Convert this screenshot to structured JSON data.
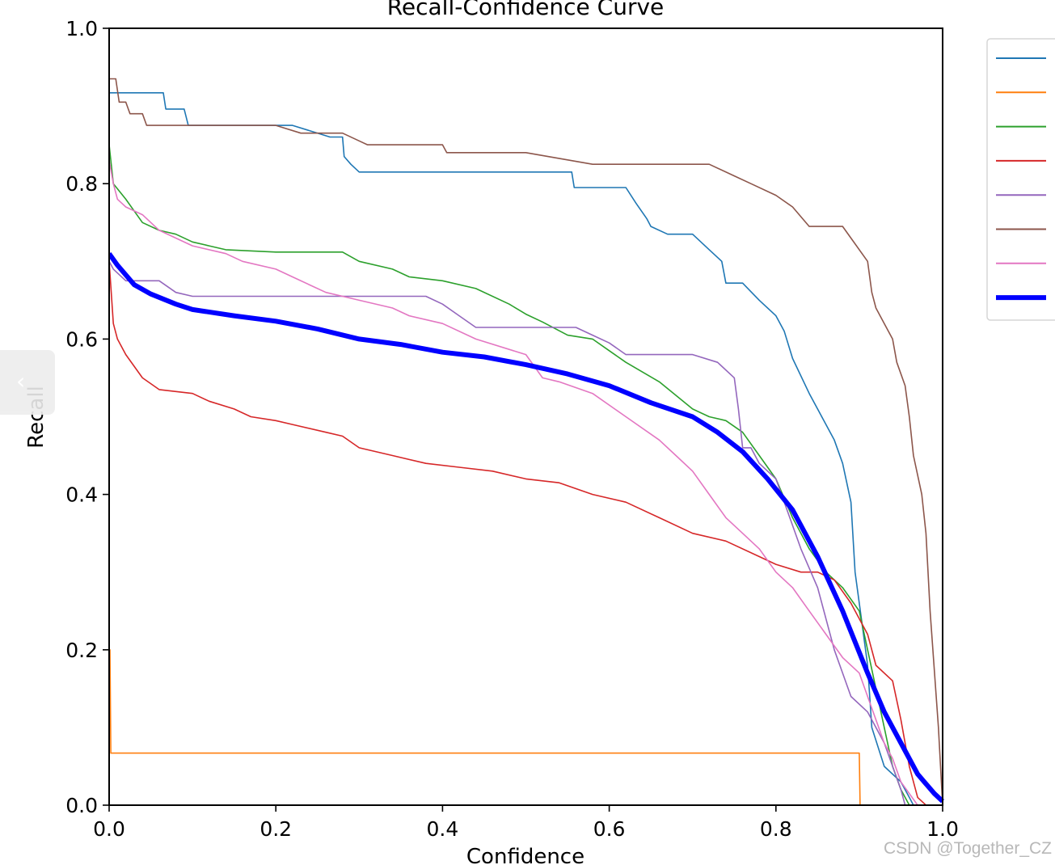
{
  "chart_data": {
    "type": "line",
    "title": "Recall-Confidence Curve",
    "xlabel": "Confidence",
    "ylabel": "Recall",
    "xlim": [
      0,
      1
    ],
    "ylim": [
      0,
      1
    ],
    "xticks": [
      "0.0",
      "0.2",
      "0.4",
      "0.6",
      "0.8",
      "1.0"
    ],
    "yticks": [
      "0.0",
      "0.2",
      "0.4",
      "0.6",
      "0.8",
      "1.0"
    ],
    "grid": false,
    "legend_position": "outside-right",
    "series": [
      {
        "color": "#1f77b4",
        "width": 1.6,
        "x": [
          0,
          0.065,
          0.068,
          0.09,
          0.095,
          0.22,
          0.265,
          0.28,
          0.282,
          0.29,
          0.3,
          0.555,
          0.558,
          0.62,
          0.632,
          0.645,
          0.65,
          0.67,
          0.7,
          0.72,
          0.735,
          0.74,
          0.76,
          0.78,
          0.8,
          0.81,
          0.82,
          0.84,
          0.86,
          0.87,
          0.88,
          0.89,
          0.895,
          0.9,
          0.905,
          0.91,
          0.915,
          0.93,
          0.95,
          0.96,
          0.965
        ],
        "y": [
          0.917,
          0.917,
          0.896,
          0.896,
          0.875,
          0.875,
          0.86,
          0.86,
          0.835,
          0.825,
          0.815,
          0.815,
          0.795,
          0.795,
          0.775,
          0.755,
          0.745,
          0.735,
          0.735,
          0.715,
          0.7,
          0.672,
          0.672,
          0.65,
          0.63,
          0.61,
          0.575,
          0.53,
          0.49,
          0.47,
          0.44,
          0.39,
          0.3,
          0.26,
          0.22,
          0.18,
          0.1,
          0.05,
          0.03,
          0.01,
          0
        ]
      },
      {
        "color": "#ff7f0e",
        "width": 1.6,
        "x": [
          0,
          0.001,
          0.002,
          0.9,
          0.901,
          0.93
        ],
        "y": [
          0.2,
          0.2,
          0.067,
          0.067,
          0,
          0
        ]
      },
      {
        "color": "#2ca02c",
        "width": 1.6,
        "x": [
          0,
          0.005,
          0.02,
          0.04,
          0.06,
          0.08,
          0.1,
          0.12,
          0.14,
          0.2,
          0.28,
          0.3,
          0.34,
          0.36,
          0.4,
          0.44,
          0.48,
          0.5,
          0.52,
          0.55,
          0.58,
          0.6,
          0.62,
          0.66,
          0.7,
          0.72,
          0.74,
          0.76,
          0.78,
          0.8,
          0.82,
          0.84,
          0.86,
          0.88,
          0.9,
          0.91,
          0.92,
          0.93,
          0.94,
          0.95,
          0.96
        ],
        "y": [
          0.85,
          0.8,
          0.78,
          0.75,
          0.74,
          0.735,
          0.725,
          0.72,
          0.715,
          0.712,
          0.712,
          0.7,
          0.69,
          0.68,
          0.675,
          0.665,
          0.645,
          0.632,
          0.622,
          0.605,
          0.6,
          0.585,
          0.57,
          0.545,
          0.51,
          0.5,
          0.495,
          0.48,
          0.45,
          0.42,
          0.37,
          0.33,
          0.3,
          0.28,
          0.25,
          0.2,
          0.15,
          0.1,
          0.05,
          0.02,
          0
        ]
      },
      {
        "color": "#d62728",
        "width": 1.6,
        "x": [
          0,
          0.005,
          0.01,
          0.02,
          0.04,
          0.06,
          0.1,
          0.12,
          0.15,
          0.17,
          0.2,
          0.22,
          0.26,
          0.28,
          0.3,
          0.34,
          0.38,
          0.42,
          0.46,
          0.5,
          0.54,
          0.58,
          0.62,
          0.66,
          0.7,
          0.74,
          0.78,
          0.8,
          0.83,
          0.85,
          0.87,
          0.89,
          0.9,
          0.91,
          0.92,
          0.94,
          0.95,
          0.96,
          0.97,
          0.98
        ],
        "y": [
          0.7,
          0.62,
          0.6,
          0.58,
          0.55,
          0.535,
          0.53,
          0.52,
          0.51,
          0.5,
          0.495,
          0.49,
          0.48,
          0.475,
          0.46,
          0.45,
          0.44,
          0.435,
          0.43,
          0.42,
          0.415,
          0.4,
          0.39,
          0.37,
          0.35,
          0.34,
          0.32,
          0.31,
          0.3,
          0.3,
          0.29,
          0.26,
          0.24,
          0.22,
          0.18,
          0.16,
          0.11,
          0.05,
          0.01,
          0
        ]
      },
      {
        "color": "#9467bd",
        "width": 1.6,
        "x": [
          0,
          0.005,
          0.02,
          0.04,
          0.06,
          0.08,
          0.1,
          0.3,
          0.34,
          0.38,
          0.4,
          0.42,
          0.44,
          0.5,
          0.56,
          0.58,
          0.6,
          0.62,
          0.7,
          0.73,
          0.75,
          0.755,
          0.76,
          0.77,
          0.78,
          0.8,
          0.81,
          0.82,
          0.83,
          0.85,
          0.86,
          0.87,
          0.88,
          0.89,
          0.91,
          0.92,
          0.93,
          0.94,
          0.95,
          0.955
        ],
        "y": [
          0.7,
          0.69,
          0.675,
          0.675,
          0.675,
          0.66,
          0.655,
          0.655,
          0.655,
          0.655,
          0.645,
          0.63,
          0.615,
          0.615,
          0.615,
          0.605,
          0.595,
          0.58,
          0.58,
          0.57,
          0.55,
          0.51,
          0.46,
          0.46,
          0.44,
          0.42,
          0.39,
          0.36,
          0.33,
          0.28,
          0.24,
          0.2,
          0.17,
          0.14,
          0.12,
          0.1,
          0.08,
          0.05,
          0.02,
          0
        ]
      },
      {
        "color": "#8c564b",
        "width": 1.6,
        "x": [
          0,
          0.008,
          0.012,
          0.02,
          0.025,
          0.04,
          0.045,
          0.2,
          0.23,
          0.28,
          0.3,
          0.31,
          0.4,
          0.405,
          0.5,
          0.58,
          0.6,
          0.72,
          0.75,
          0.77,
          0.8,
          0.82,
          0.84,
          0.86,
          0.88,
          0.89,
          0.91,
          0.915,
          0.92,
          0.93,
          0.94,
          0.945,
          0.955,
          0.96,
          0.965,
          0.975,
          0.98,
          0.985,
          0.995,
          1.0
        ],
        "y": [
          0.935,
          0.935,
          0.905,
          0.905,
          0.89,
          0.89,
          0.875,
          0.875,
          0.865,
          0.865,
          0.855,
          0.85,
          0.85,
          0.84,
          0.84,
          0.825,
          0.825,
          0.825,
          0.81,
          0.8,
          0.785,
          0.77,
          0.745,
          0.745,
          0.745,
          0.73,
          0.7,
          0.66,
          0.64,
          0.62,
          0.6,
          0.57,
          0.54,
          0.5,
          0.45,
          0.4,
          0.35,
          0.25,
          0.1,
          0
        ]
      },
      {
        "color": "#e377c2",
        "width": 1.6,
        "x": [
          0,
          0.005,
          0.01,
          0.02,
          0.04,
          0.06,
          0.08,
          0.1,
          0.14,
          0.16,
          0.2,
          0.22,
          0.24,
          0.26,
          0.28,
          0.3,
          0.34,
          0.36,
          0.4,
          0.44,
          0.5,
          0.52,
          0.54,
          0.58,
          0.62,
          0.66,
          0.68,
          0.7,
          0.72,
          0.74,
          0.76,
          0.78,
          0.8,
          0.82,
          0.84,
          0.86,
          0.88,
          0.9,
          0.91,
          0.92,
          0.93,
          0.94,
          0.95,
          0.97
        ],
        "y": [
          0.83,
          0.8,
          0.78,
          0.77,
          0.76,
          0.74,
          0.73,
          0.72,
          0.71,
          0.7,
          0.69,
          0.68,
          0.67,
          0.66,
          0.655,
          0.65,
          0.64,
          0.63,
          0.62,
          0.6,
          0.58,
          0.55,
          0.545,
          0.53,
          0.5,
          0.47,
          0.45,
          0.43,
          0.4,
          0.37,
          0.35,
          0.33,
          0.3,
          0.28,
          0.25,
          0.22,
          0.19,
          0.17,
          0.14,
          0.11,
          0.08,
          0.06,
          0.03,
          0
        ]
      },
      {
        "color": "#0000ff",
        "width": 6,
        "x": [
          0,
          0.01,
          0.03,
          0.05,
          0.08,
          0.1,
          0.15,
          0.2,
          0.25,
          0.3,
          0.35,
          0.4,
          0.45,
          0.5,
          0.55,
          0.6,
          0.65,
          0.7,
          0.73,
          0.76,
          0.79,
          0.82,
          0.85,
          0.88,
          0.91,
          0.93,
          0.95,
          0.97,
          0.99,
          1.0
        ],
        "y": [
          0.71,
          0.695,
          0.67,
          0.658,
          0.645,
          0.638,
          0.63,
          0.623,
          0.613,
          0.6,
          0.593,
          0.583,
          0.577,
          0.567,
          0.555,
          0.54,
          0.518,
          0.5,
          0.48,
          0.455,
          0.42,
          0.38,
          0.32,
          0.25,
          0.17,
          0.12,
          0.08,
          0.04,
          0.015,
          0.005
        ]
      }
    ]
  }
}
